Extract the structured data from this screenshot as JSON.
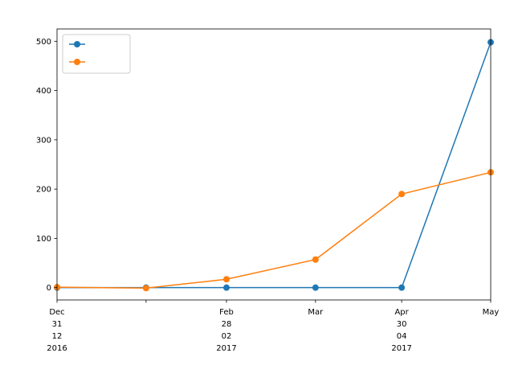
{
  "chart_data": {
    "type": "line",
    "title": "",
    "xlabel": "",
    "ylabel": "",
    "x": [
      "2016-12-31",
      "2017-01-31",
      "2017-02-28",
      "2017-03-31",
      "2017-04-30",
      "2017-05-31"
    ],
    "x_tick_labels": [
      {
        "date": "2016-12-31",
        "lines": [
          "Dec",
          "31",
          "12",
          "2016"
        ]
      },
      {
        "date": "2017-01-31",
        "lines": [
          ""
        ]
      },
      {
        "date": "2017-02-28",
        "lines": [
          "Feb",
          "28",
          "02",
          "2017"
        ]
      },
      {
        "date": "2017-03-31",
        "lines": [
          "Mar"
        ]
      },
      {
        "date": "2017-04-30",
        "lines": [
          "Apr",
          "30",
          "04",
          "2017"
        ]
      },
      {
        "date": "2017-05-31",
        "lines": [
          "May"
        ]
      }
    ],
    "y_ticks": [
      0,
      100,
      200,
      300,
      400,
      500
    ],
    "ylim": [
      -25,
      525
    ],
    "grid": false,
    "legend": "top-left",
    "series": [
      {
        "name": "",
        "color": "#1f77b4",
        "marker": "circle",
        "values": [
          0,
          0,
          0,
          0,
          0,
          498
        ]
      },
      {
        "name": "",
        "color": "#ff7f0e",
        "marker": "circle",
        "values": [
          1,
          -1,
          17,
          57,
          190,
          234
        ]
      }
    ]
  }
}
